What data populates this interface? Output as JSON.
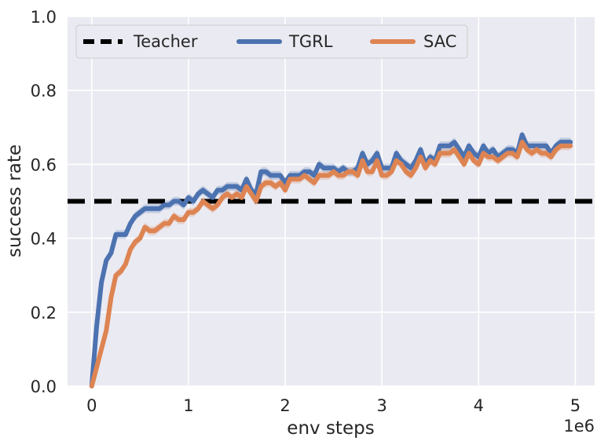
{
  "chart_data": {
    "type": "line",
    "xlabel": "env steps",
    "ylabel": "success rate",
    "x_offset_label": "1e6",
    "xlim": [
      -0.25,
      5.2
    ],
    "ylim": [
      0.0,
      1.0
    ],
    "xticks": [
      0,
      1,
      2,
      3,
      4,
      5
    ],
    "xtick_labels": [
      "0",
      "1",
      "2",
      "3",
      "4",
      "5"
    ],
    "yticks": [
      0.0,
      0.2,
      0.4,
      0.6,
      0.8,
      1.0
    ],
    "ytick_labels": [
      "0.0",
      "0.2",
      "0.4",
      "0.6",
      "0.8",
      "1.0"
    ],
    "grid": true,
    "background": "#eaeaf2",
    "legend_position": "top-left",
    "legend_entries": [
      "Teacher",
      "TGRL",
      "SAC"
    ],
    "teacher": {
      "name": "Teacher",
      "value": 0.5,
      "color": "#000000",
      "style": "dashed"
    },
    "series": [
      {
        "name": "TGRL",
        "color": "#4c72b0",
        "x": [
          0.0,
          0.05,
          0.1,
          0.15,
          0.2,
          0.25,
          0.3,
          0.35,
          0.4,
          0.45,
          0.5,
          0.55,
          0.6,
          0.65,
          0.7,
          0.75,
          0.8,
          0.85,
          0.9,
          0.95,
          1.0,
          1.05,
          1.1,
          1.15,
          1.2,
          1.25,
          1.3,
          1.35,
          1.4,
          1.45,
          1.5,
          1.55,
          1.6,
          1.65,
          1.7,
          1.75,
          1.8,
          1.85,
          1.9,
          1.95,
          2.0,
          2.05,
          2.1,
          2.15,
          2.2,
          2.25,
          2.3,
          2.35,
          2.4,
          2.45,
          2.5,
          2.55,
          2.6,
          2.65,
          2.7,
          2.75,
          2.8,
          2.85,
          2.9,
          2.95,
          3.0,
          3.05,
          3.1,
          3.15,
          3.2,
          3.25,
          3.3,
          3.35,
          3.4,
          3.45,
          3.5,
          3.55,
          3.6,
          3.65,
          3.7,
          3.75,
          3.8,
          3.85,
          3.9,
          3.95,
          4.0,
          4.05,
          4.1,
          4.15,
          4.2,
          4.25,
          4.3,
          4.35,
          4.4,
          4.45,
          4.5,
          4.55,
          4.6,
          4.65,
          4.7,
          4.75,
          4.8,
          4.85,
          4.9,
          4.95
        ],
        "values": [
          0.0,
          0.16,
          0.28,
          0.34,
          0.36,
          0.41,
          0.41,
          0.41,
          0.44,
          0.46,
          0.47,
          0.48,
          0.48,
          0.48,
          0.48,
          0.49,
          0.49,
          0.5,
          0.5,
          0.49,
          0.51,
          0.5,
          0.52,
          0.53,
          0.52,
          0.51,
          0.53,
          0.53,
          0.54,
          0.54,
          0.54,
          0.53,
          0.56,
          0.53,
          0.52,
          0.58,
          0.58,
          0.57,
          0.57,
          0.57,
          0.55,
          0.57,
          0.57,
          0.57,
          0.58,
          0.58,
          0.57,
          0.6,
          0.59,
          0.59,
          0.59,
          0.58,
          0.59,
          0.58,
          0.58,
          0.59,
          0.63,
          0.6,
          0.61,
          0.63,
          0.59,
          0.59,
          0.59,
          0.63,
          0.61,
          0.6,
          0.59,
          0.61,
          0.64,
          0.6,
          0.62,
          0.61,
          0.65,
          0.65,
          0.65,
          0.66,
          0.64,
          0.62,
          0.65,
          0.63,
          0.62,
          0.65,
          0.63,
          0.64,
          0.62,
          0.63,
          0.64,
          0.64,
          0.63,
          0.68,
          0.65,
          0.65,
          0.65,
          0.65,
          0.65,
          0.63,
          0.65,
          0.66,
          0.66,
          0.66
        ]
      },
      {
        "name": "SAC",
        "color": "#dd8452",
        "x": [
          0.0,
          0.05,
          0.1,
          0.15,
          0.2,
          0.25,
          0.3,
          0.35,
          0.4,
          0.45,
          0.5,
          0.55,
          0.6,
          0.65,
          0.7,
          0.75,
          0.8,
          0.85,
          0.9,
          0.95,
          1.0,
          1.05,
          1.1,
          1.15,
          1.2,
          1.25,
          1.3,
          1.35,
          1.4,
          1.45,
          1.5,
          1.55,
          1.6,
          1.65,
          1.7,
          1.75,
          1.8,
          1.85,
          1.9,
          1.95,
          2.0,
          2.05,
          2.1,
          2.15,
          2.2,
          2.25,
          2.3,
          2.35,
          2.4,
          2.45,
          2.5,
          2.55,
          2.6,
          2.65,
          2.7,
          2.75,
          2.8,
          2.85,
          2.9,
          2.95,
          3.0,
          3.05,
          3.1,
          3.15,
          3.2,
          3.25,
          3.3,
          3.35,
          3.4,
          3.45,
          3.5,
          3.55,
          3.6,
          3.65,
          3.7,
          3.75,
          3.8,
          3.85,
          3.9,
          3.95,
          4.0,
          4.05,
          4.1,
          4.15,
          4.2,
          4.25,
          4.3,
          4.35,
          4.4,
          4.45,
          4.5,
          4.55,
          4.6,
          4.65,
          4.7,
          4.75,
          4.8,
          4.85,
          4.9,
          4.95
        ],
        "values": [
          0.0,
          0.05,
          0.1,
          0.15,
          0.24,
          0.3,
          0.31,
          0.33,
          0.37,
          0.39,
          0.4,
          0.43,
          0.42,
          0.42,
          0.43,
          0.44,
          0.44,
          0.46,
          0.45,
          0.45,
          0.47,
          0.47,
          0.48,
          0.5,
          0.49,
          0.48,
          0.49,
          0.51,
          0.52,
          0.51,
          0.52,
          0.51,
          0.54,
          0.52,
          0.5,
          0.54,
          0.55,
          0.55,
          0.54,
          0.55,
          0.53,
          0.56,
          0.56,
          0.56,
          0.57,
          0.56,
          0.55,
          0.57,
          0.57,
          0.57,
          0.58,
          0.57,
          0.57,
          0.58,
          0.58,
          0.57,
          0.61,
          0.58,
          0.58,
          0.61,
          0.57,
          0.57,
          0.58,
          0.61,
          0.6,
          0.58,
          0.57,
          0.59,
          0.62,
          0.59,
          0.61,
          0.6,
          0.63,
          0.63,
          0.63,
          0.64,
          0.62,
          0.6,
          0.63,
          0.61,
          0.6,
          0.63,
          0.62,
          0.62,
          0.61,
          0.62,
          0.63,
          0.63,
          0.62,
          0.66,
          0.64,
          0.63,
          0.64,
          0.63,
          0.63,
          0.62,
          0.64,
          0.65,
          0.65,
          0.65
        ]
      }
    ]
  }
}
